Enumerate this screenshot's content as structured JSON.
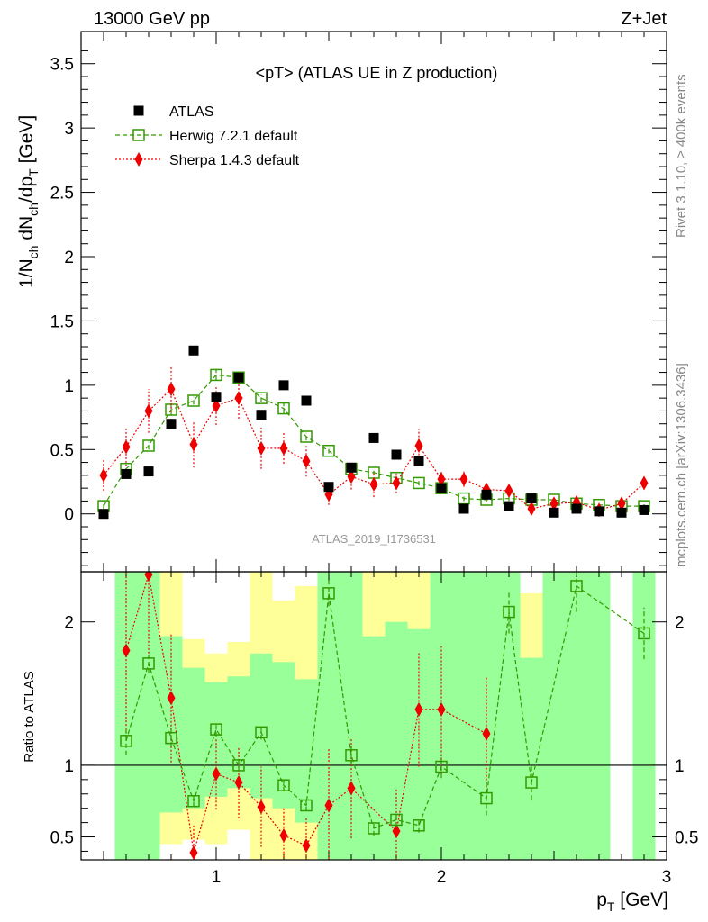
{
  "header": {
    "energy_label": "13000 GeV pp",
    "process_label": "Z+Jet"
  },
  "side_labels": {
    "rivet": "Rivet 3.1.10, ≥ 400k events",
    "mcplots": "mcplots.cern.ch [arXiv:1306.3436]"
  },
  "chart_data": [
    {
      "type": "scatter",
      "title": "<pT> (ATLAS UE in Z production)",
      "watermark": "ATLAS_2019_I1736531",
      "xlabel": "p_T [GeV]",
      "ylabel": "1/N_ch dN_ch/dp_T [GeV]",
      "xlim": [
        0.4,
        3.0
      ],
      "ylim": [
        -0.45,
        3.75
      ],
      "y_ticks": [
        "0",
        "0.5",
        "1",
        "1.5",
        "2",
        "2.5",
        "3",
        "3.5"
      ],
      "legend_position": "top-left",
      "x": [
        0.5,
        0.6,
        0.7,
        0.8,
        0.9,
        1.0,
        1.1,
        1.2,
        1.3,
        1.4,
        1.5,
        1.6,
        1.7,
        1.8,
        1.9,
        2.0,
        2.1,
        2.2,
        2.3,
        2.4,
        2.5,
        2.6,
        2.7,
        2.8,
        2.9
      ],
      "series": [
        {
          "name": "ATLAS",
          "color": "#000000",
          "marker": "square-filled",
          "values": [
            0.0,
            0.31,
            0.33,
            0.7,
            1.27,
            0.91,
            1.06,
            0.77,
            1.0,
            0.88,
            0.21,
            0.36,
            0.59,
            0.46,
            0.41,
            0.2,
            0.04,
            0.15,
            0.06,
            0.12,
            0.01,
            0.04,
            0.02,
            0.01,
            0.03
          ]
        },
        {
          "name": "Herwig 7.2.1 default",
          "color": "#339900",
          "marker": "square-open",
          "values": [
            0.06,
            0.35,
            0.53,
            0.81,
            0.88,
            1.08,
            1.06,
            0.9,
            0.82,
            0.6,
            0.49,
            0.35,
            0.32,
            0.28,
            0.24,
            0.2,
            0.12,
            0.11,
            0.12,
            0.11,
            0.11,
            0.08,
            0.07,
            0.06,
            0.06
          ],
          "errors": [
            0.02,
            0.03,
            0.03,
            0.04,
            0.03,
            0.04,
            0.03,
            0.03,
            0.04,
            0.03,
            0.02,
            0.03,
            0.02,
            0.02,
            0.02,
            0.02,
            0.02,
            0.02,
            0.02,
            0.02,
            0.02,
            0.02,
            0.02,
            0.02,
            0.02
          ]
        },
        {
          "name": "Sherpa 1.4.3 default",
          "color": "#ee0000",
          "marker": "diamond-filled",
          "values": [
            0.3,
            0.52,
            0.8,
            0.97,
            0.54,
            0.84,
            0.9,
            0.51,
            0.51,
            0.41,
            0.15,
            0.29,
            0.23,
            0.24,
            0.53,
            0.27,
            0.27,
            0.19,
            0.18,
            0.04,
            0.08,
            0.09,
            0.03,
            0.08,
            0.24
          ],
          "errors": [
            0.12,
            0.15,
            0.17,
            0.18,
            0.18,
            0.15,
            0.16,
            0.16,
            0.12,
            0.12,
            0.08,
            0.1,
            0.1,
            0.08,
            0.13,
            0.07,
            0.06,
            0.05,
            0.04,
            0.04,
            0.03,
            0.03,
            0.03,
            0.03,
            0.05
          ]
        }
      ]
    },
    {
      "type": "scatter",
      "ylabel": "Ratio to ATLAS",
      "xlabel": "p_T [GeV]",
      "xlim": [
        0.4,
        3.0
      ],
      "ylim": [
        0.34,
        2.35
      ],
      "x_ticks": [
        "1",
        "2",
        "3"
      ],
      "y_ticks": [
        "0.5",
        "1",
        "2"
      ],
      "reference_line": 1,
      "bands": [
        {
          "x0": 0.55,
          "x1": 0.65,
          "inner": [
            0.34,
            2.35
          ],
          "outer": [
            0.34,
            2.35
          ]
        },
        {
          "x0": 0.65,
          "x1": 0.75,
          "inner": [
            0.34,
            2.35
          ],
          "outer": [
            0.34,
            2.35
          ]
        },
        {
          "x0": 0.75,
          "x1": 0.85,
          "inner": [
            0.67,
            1.9
          ],
          "outer": [
            0.45,
            2.35
          ]
        },
        {
          "x0": 0.85,
          "x1": 0.95,
          "inner": [
            0.7,
            1.68
          ],
          "outer": [
            0.48,
            1.88
          ]
        },
        {
          "x0": 0.95,
          "x1": 1.05,
          "inner": [
            0.78,
            1.58
          ],
          "outer": [
            0.45,
            1.78
          ]
        },
        {
          "x0": 1.05,
          "x1": 1.15,
          "inner": [
            0.84,
            1.62
          ],
          "outer": [
            0.55,
            1.86
          ]
        },
        {
          "x0": 1.15,
          "x1": 1.25,
          "inner": [
            0.77,
            1.78
          ],
          "outer": [
            0.34,
            2.35
          ]
        },
        {
          "x0": 1.25,
          "x1": 1.35,
          "inner": [
            0.7,
            1.72
          ],
          "outer": [
            0.34,
            2.15
          ]
        },
        {
          "x0": 1.35,
          "x1": 1.45,
          "inner": [
            0.6,
            1.6
          ],
          "outer": [
            0.34,
            2.25
          ]
        },
        {
          "x0": 1.45,
          "x1": 1.55,
          "inner": [
            0.34,
            2.35
          ],
          "outer": [
            0.34,
            2.35
          ]
        },
        {
          "x0": 1.55,
          "x1": 1.65,
          "inner": [
            0.34,
            2.35
          ],
          "outer": [
            0.34,
            2.35
          ]
        },
        {
          "x0": 1.65,
          "x1": 1.75,
          "inner": [
            0.34,
            1.9
          ],
          "outer": [
            0.34,
            2.35
          ]
        },
        {
          "x0": 1.75,
          "x1": 1.85,
          "inner": [
            0.34,
            2.0
          ],
          "outer": [
            0.34,
            2.35
          ]
        },
        {
          "x0": 1.85,
          "x1": 1.95,
          "inner": [
            0.34,
            1.95
          ],
          "outer": [
            0.34,
            2.35
          ]
        },
        {
          "x0": 1.95,
          "x1": 2.05,
          "inner": [
            0.34,
            2.35
          ],
          "outer": [
            0.34,
            2.35
          ]
        },
        {
          "x0": 2.05,
          "x1": 2.15,
          "inner": [
            0.34,
            2.35
          ],
          "outer": [
            0.34,
            2.35
          ]
        },
        {
          "x0": 2.15,
          "x1": 2.25,
          "inner": [
            0.34,
            2.35
          ],
          "outer": [
            0.34,
            2.35
          ]
        },
        {
          "x0": 2.25,
          "x1": 2.35,
          "inner": [
            0.34,
            2.35
          ],
          "outer": [
            0.34,
            2.35
          ]
        },
        {
          "x0": 2.35,
          "x1": 2.45,
          "inner": [
            0.34,
            1.75
          ],
          "outer": [
            0.34,
            2.2
          ]
        },
        {
          "x0": 2.45,
          "x1": 2.55,
          "inner": [
            0.34,
            2.35
          ],
          "outer": [
            0.34,
            2.35
          ]
        },
        {
          "x0": 2.55,
          "x1": 2.65,
          "inner": [
            0.34,
            2.35
          ],
          "outer": [
            0.34,
            2.35
          ]
        },
        {
          "x0": 2.65,
          "x1": 2.75,
          "inner": [
            0.34,
            2.35
          ],
          "outer": [
            0.34,
            2.35
          ]
        },
        {
          "x0": 2.85,
          "x1": 2.95,
          "inner": [
            0.34,
            2.35
          ],
          "outer": [
            0.34,
            2.35
          ]
        }
      ],
      "x": [
        0.6,
        0.7,
        0.8,
        0.9,
        1.0,
        1.1,
        1.2,
        1.3,
        1.4,
        1.5,
        1.6,
        1.7,
        1.8,
        1.9,
        2.0,
        2.2,
        2.3,
        2.4,
        2.6,
        2.9
      ],
      "series": [
        {
          "name": "Herwig 7.2.1 default",
          "color": "#339900",
          "marker": "square-open",
          "values": [
            1.17,
            1.71,
            1.19,
            0.75,
            1.25,
            1.0,
            1.23,
            0.86,
            0.72,
            2.2,
            1.07,
            0.56,
            0.62,
            0.58,
            0.99,
            0.77,
            2.07,
            0.88,
            2.25,
            1.92
          ],
          "errors": [
            0.1,
            0.07,
            0.06,
            0.04,
            0.05,
            0.04,
            0.05,
            0.04,
            0.04,
            0.09,
            0.07,
            0.05,
            0.05,
            0.05,
            0.08,
            0.12,
            0.15,
            0.12,
            0.18,
            0.18
          ]
        },
        {
          "name": "Sherpa 1.4.3 default",
          "color": "#ee0000",
          "marker": "diamond-filled",
          "x": [
            0.6,
            0.7,
            0.8,
            0.9,
            1.0,
            1.1,
            1.2,
            1.3,
            1.4,
            1.5,
            1.6,
            1.8,
            1.9,
            2.0,
            2.2
          ],
          "values": [
            1.8,
            2.33,
            1.47,
            0.39,
            0.94,
            0.88,
            0.71,
            0.51,
            0.44,
            0.72,
            0.84,
            0.54,
            1.39,
            1.39,
            1.22
          ],
          "errors": [
            0.6,
            0.55,
            0.45,
            0.2,
            0.25,
            0.25,
            0.28,
            0.2,
            0.2,
            0.4,
            0.35,
            0.3,
            0.4,
            0.45,
            0.4
          ]
        }
      ]
    }
  ]
}
